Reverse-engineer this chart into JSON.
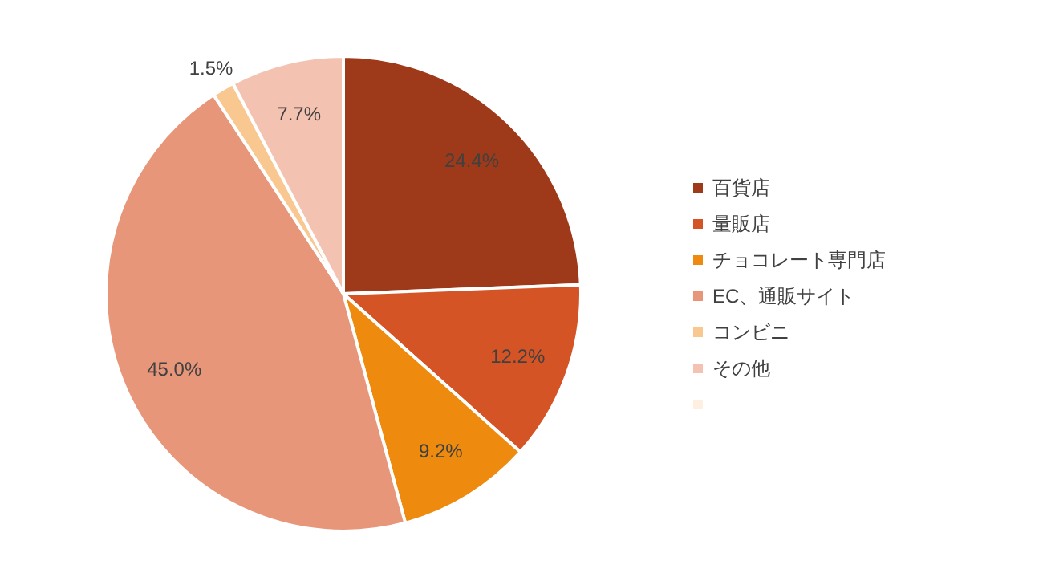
{
  "chart_data": {
    "type": "pie",
    "categories": [
      "百貨店",
      "量販店",
      "チョコレート専門店",
      "EC、通販サイト",
      "コンビニ",
      "その他",
      null
    ],
    "values": [
      24.4,
      12.2,
      9.2,
      45.0,
      1.5,
      7.7,
      0
    ],
    "colors": [
      "#9e3a1a",
      "#d45426",
      "#ee8a0e",
      "#e8967a",
      "#f9c891",
      "#f3c2b1",
      "#fdf0e0"
    ],
    "value_labels": [
      "24.4%",
      "12.2%",
      "9.2%",
      "45.0%",
      "1.5%",
      "7.7%",
      null
    ],
    "legend": "right"
  }
}
